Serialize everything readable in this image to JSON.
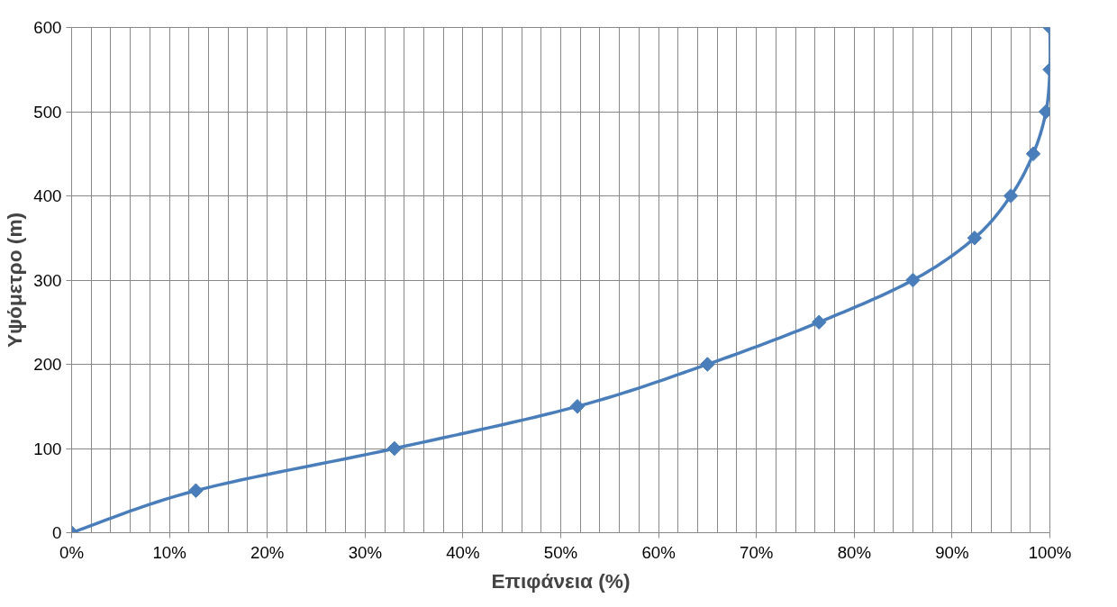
{
  "chart_data": {
    "type": "line",
    "xlabel": "Επιφάνεια (%)",
    "ylabel": "Υψόμετρο (m)",
    "x": [
      0,
      12.7,
      33,
      51.7,
      65,
      76.4,
      86,
      92.3,
      96,
      98.3,
      99.6,
      100,
      100
    ],
    "series": [
      {
        "color": "#4a7ebb",
        "values": [
          0,
          50,
          100,
          150,
          200,
          250,
          300,
          350,
          400,
          450,
          500,
          550,
          600
        ]
      }
    ],
    "xlim": [
      0,
      100
    ],
    "ylim": [
      0,
      600
    ],
    "xticks": [
      {
        "value": 0,
        "label": "0%"
      },
      {
        "value": 10,
        "label": "10%"
      },
      {
        "value": 20,
        "label": "20%"
      },
      {
        "value": 30,
        "label": "30%"
      },
      {
        "value": 40,
        "label": "40%"
      },
      {
        "value": 50,
        "label": "50%"
      },
      {
        "value": 60,
        "label": "60%"
      },
      {
        "value": 70,
        "label": "70%"
      },
      {
        "value": 80,
        "label": "80%"
      },
      {
        "value": 90,
        "label": "90%"
      },
      {
        "value": 100,
        "label": "100%"
      }
    ],
    "yticks": [
      0,
      100,
      200,
      300,
      400,
      500,
      600
    ],
    "grid": true,
    "marker": "diamond",
    "line_style": "solid"
  }
}
